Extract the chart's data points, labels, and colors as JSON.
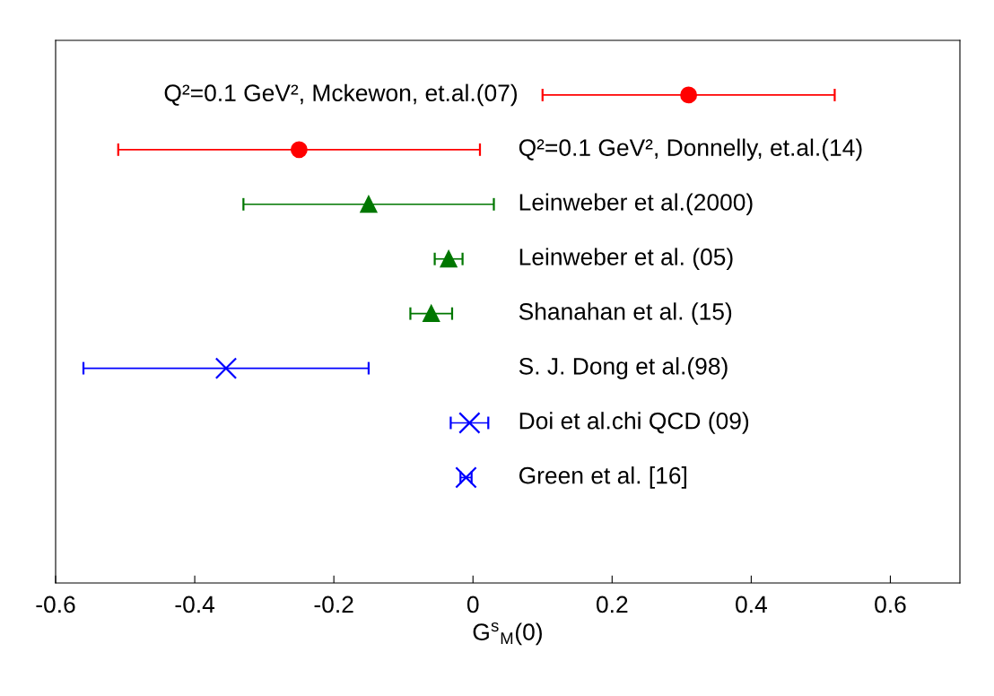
{
  "chart_data": {
    "type": "scatter",
    "orientation": "horizontal",
    "xlabel": "G$^{s}$$_{M}$(0)",
    "categories": [
      "Q²=0.1 GeV², Mckewon, et.al.(07)",
      "Q²=0.1 GeV², Donnelly, et.al.(14)",
      "Leinweber et al.(2000)",
      "Leinweber et al. (05)",
      "Shanahan et al. (15)",
      "S. J. Dong et al.(98)",
      "Doi et al.chi QCD (09)",
      "Green et al. [16]"
    ],
    "xlim": [
      -0.6,
      0.7
    ],
    "xticks": [
      -0.6,
      -0.4,
      -0.2,
      0,
      0.2,
      0.4,
      0.6
    ],
    "grid": false,
    "series": [
      {
        "color": "#ff0000",
        "marker": "circle",
        "values": [
          0.31,
          -0.25,
          null,
          null,
          null,
          null,
          null,
          null
        ],
        "errors": [
          0.21,
          0.26,
          null,
          null,
          null,
          null,
          null,
          null
        ]
      },
      {
        "color": "#007700",
        "marker": "triangle",
        "values": [
          null,
          null,
          -0.15,
          -0.035,
          -0.06,
          null,
          null,
          null
        ],
        "errors": [
          null,
          null,
          0.18,
          0.02,
          0.03,
          null,
          null,
          null
        ]
      },
      {
        "color": "#0000ff",
        "marker": "cross",
        "values": [
          null,
          null,
          null,
          null,
          null,
          -0.355,
          -0.005,
          -0.01
        ],
        "errors": [
          null,
          null,
          null,
          null,
          null,
          0.205,
          0.027,
          0.008
        ]
      }
    ]
  }
}
